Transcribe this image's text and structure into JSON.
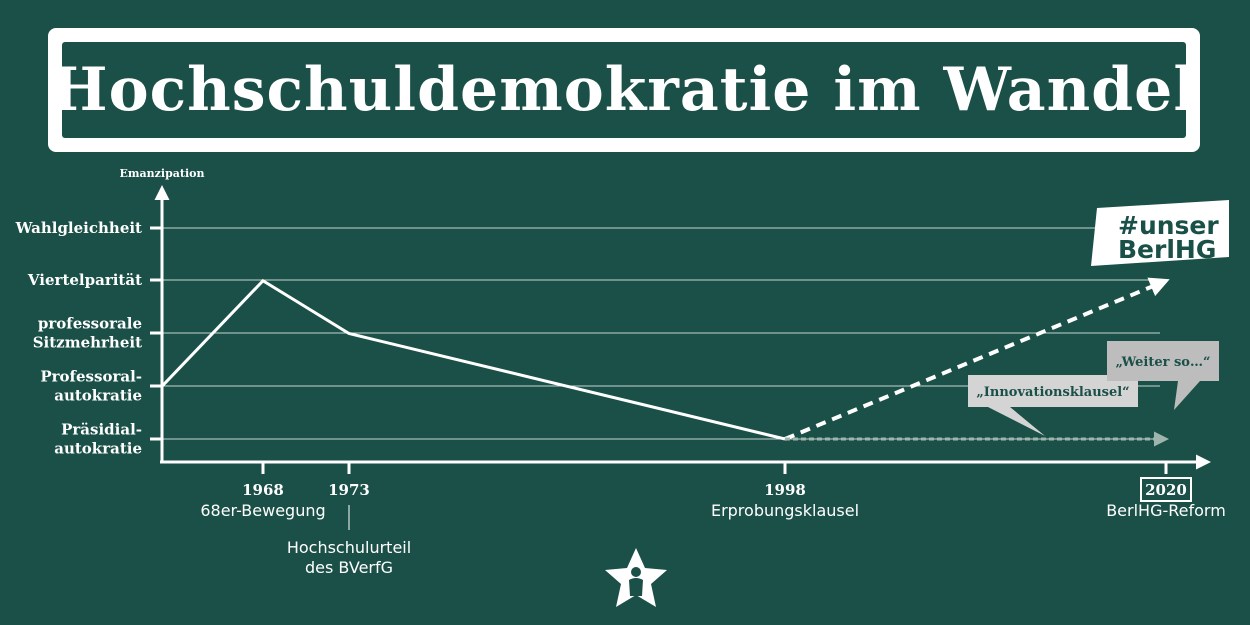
{
  "title": "Hochschuldemokratie im Wandel",
  "chart_data": {
    "type": "line",
    "ylabel": "Emanzipation",
    "y_categories": [
      "Präsidial-\nautokratie",
      "Professoral-\nautokratie",
      "professorale\nSitzmehrheit",
      "Viertelparität",
      "Wahlgleichheit"
    ],
    "x_ticks": [
      {
        "year": 1968,
        "label": "1968",
        "note": "68er-Bewegung"
      },
      {
        "year": 1973,
        "label": "1973",
        "note": "Hochschulurteil\ndes BVerfG"
      },
      {
        "year": 1998,
        "label": "1998",
        "note": "Erprobungsklausel"
      },
      {
        "year": 2020,
        "label": "2020",
        "note": "BerlHG-Reform"
      }
    ],
    "x_start": 1962,
    "series": [
      {
        "style": "solid",
        "points": [
          [
            1962,
            1
          ],
          [
            1968,
            3
          ],
          [
            1973,
            2
          ],
          [
            1998,
            0
          ]
        ]
      },
      {
        "style": "dashed-white",
        "points": [
          [
            1998,
            0
          ],
          [
            2020,
            3
          ]
        ]
      },
      {
        "style": "dotted-grey",
        "points": [
          [
            1998,
            0
          ],
          [
            2020,
            0
          ]
        ]
      }
    ],
    "annotations": [
      {
        "text": "„Innovationsklausel“"
      },
      {
        "text": "„Weiter so…“"
      },
      {
        "text": "#unser\nBerlHG"
      }
    ],
    "grid": true
  }
}
